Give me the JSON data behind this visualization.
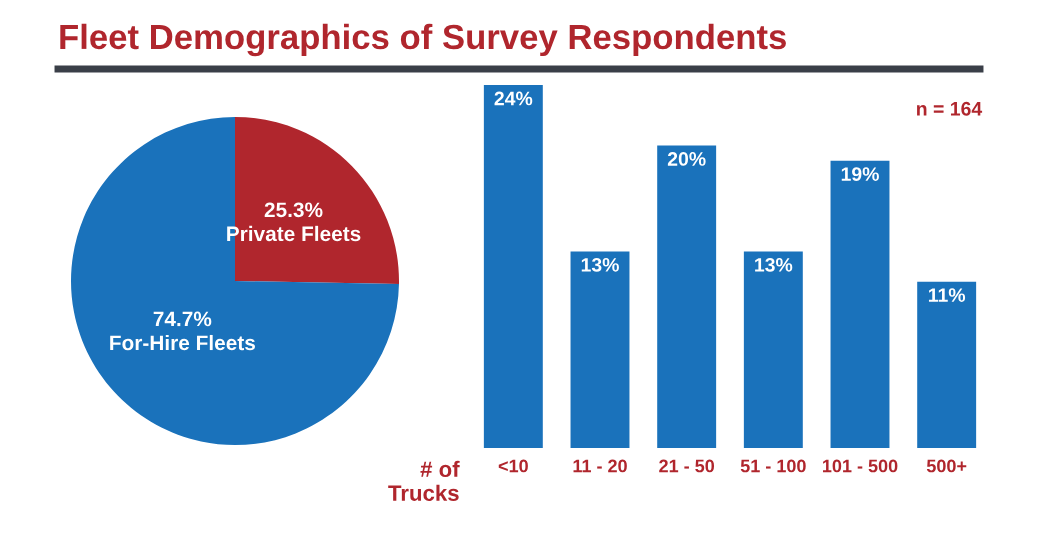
{
  "chart_data": [
    {
      "type": "pie",
      "title": "Fleet Demographics of Survey Respondents",
      "categories": [
        "Private Fleets",
        "For-Hire Fleets"
      ],
      "values": [
        25.3,
        74.7
      ],
      "colors": [
        "#b0262d",
        "#1a72bb"
      ],
      "value_labels": [
        "25.3%",
        "74.7%"
      ]
    },
    {
      "type": "bar",
      "categories": [
        "<10",
        "11 - 20",
        "21 - 50",
        "51 - 100",
        "101 - 500",
        "500+"
      ],
      "values": [
        24,
        13,
        20,
        13,
        19,
        11
      ],
      "color": "#1a72bb",
      "value_labels": [
        "24%",
        "13%",
        "20%",
        "13%",
        "19%",
        "11%"
      ],
      "xlabel": "# of\nTrucks",
      "annotations": [
        "n = 164"
      ],
      "ylim": [
        0,
        24
      ],
      "tick_labels": "x",
      "grid": false
    }
  ]
}
